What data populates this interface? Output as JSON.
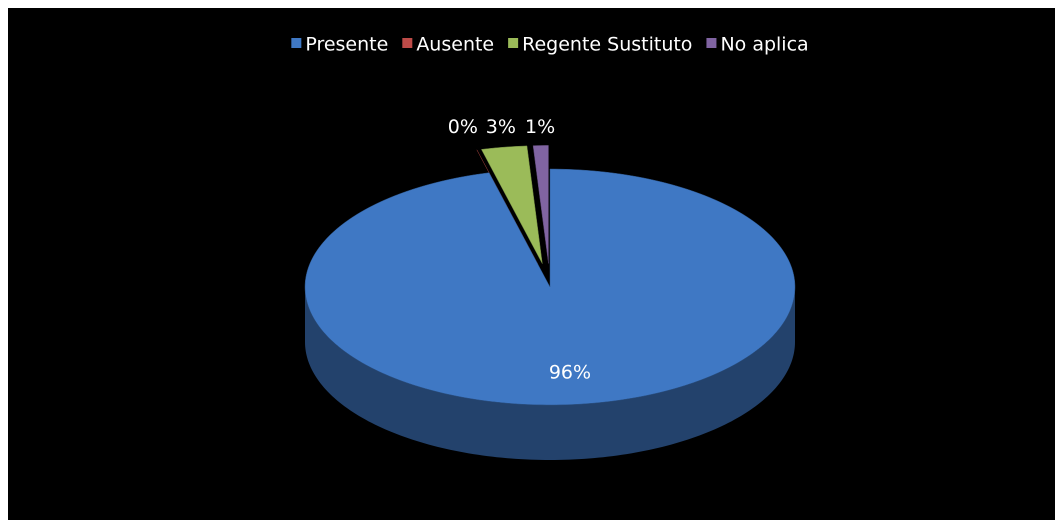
{
  "chart_data": {
    "type": "pie",
    "categories": [
      "Presente",
      "Ausente",
      "Regente Sustituto",
      "No aplica"
    ],
    "values": [
      96,
      0,
      3,
      1
    ],
    "value_labels": [
      "96%",
      "0%",
      "3%",
      "1%"
    ],
    "colors": [
      "#3f78c4",
      "#be4b48",
      "#9bbb59",
      "#8064a2"
    ],
    "legend": "top"
  }
}
